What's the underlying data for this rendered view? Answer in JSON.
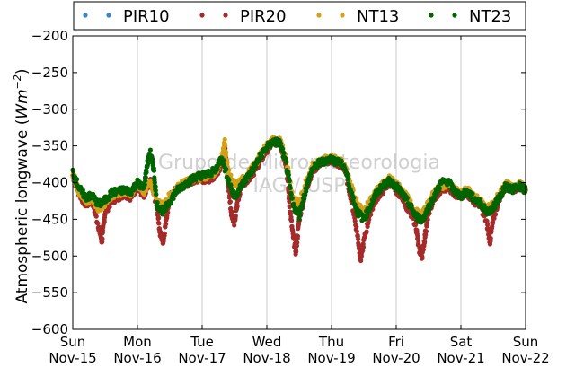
{
  "chart_data": {
    "type": "scatter",
    "title": "",
    "xlabel": "",
    "ylabel": "Atmospheric longwave (W m^-2)",
    "ylabel_text": "Atmospheric longwave (",
    "ylabel_unit_main": "Wm",
    "ylabel_unit_exp": "−2",
    "ylabel_close": ")",
    "ylim": [
      -600,
      -200
    ],
    "yticks": [
      -600,
      -550,
      -500,
      -450,
      -400,
      -350,
      -300,
      -250,
      -200
    ],
    "ytick_labels": [
      "−600",
      "−550",
      "−500",
      "−450",
      "−400",
      "−350",
      "−300",
      "−250",
      "−200"
    ],
    "xlim": [
      0,
      7
    ],
    "x_units": "days since Sun Nov-15",
    "xticks": [
      {
        "day": "Sun",
        "date": "Nov-15"
      },
      {
        "day": "Mon",
        "date": "Nov-16"
      },
      {
        "day": "Tue",
        "date": "Nov-17"
      },
      {
        "day": "Wed",
        "date": "Nov-18"
      },
      {
        "day": "Thu",
        "date": "Nov-19"
      },
      {
        "day": "Fri",
        "date": "Nov-20"
      },
      {
        "day": "Sat",
        "date": "Nov-21"
      },
      {
        "day": "Sun",
        "date": "Nov-22"
      }
    ],
    "grid": "vertical",
    "legend_position": "top",
    "watermark": [
      "Grupo de Micrometeorologia",
      "IAG / USP"
    ],
    "series": [
      {
        "name": "PIR10",
        "color": "#3b86c6",
        "points": []
      },
      {
        "name": "PIR20",
        "color": "#a52a2a",
        "points": [
          [
            0.0,
            -390
          ],
          [
            0.1,
            -415
          ],
          [
            0.2,
            -430
          ],
          [
            0.3,
            -425
          ],
          [
            0.4,
            -460
          ],
          [
            0.45,
            -480
          ],
          [
            0.5,
            -440
          ],
          [
            0.6,
            -425
          ],
          [
            0.7,
            -420
          ],
          [
            0.8,
            -415
          ],
          [
            0.9,
            -420
          ],
          [
            1.0,
            -405
          ],
          [
            1.1,
            -420
          ],
          [
            1.2,
            -400
          ],
          [
            1.3,
            -430
          ],
          [
            1.35,
            -470
          ],
          [
            1.4,
            -480
          ],
          [
            1.45,
            -445
          ],
          [
            1.5,
            -420
          ],
          [
            1.6,
            -410
          ],
          [
            1.7,
            -405
          ],
          [
            1.8,
            -400
          ],
          [
            1.9,
            -395
          ],
          [
            2.0,
            -395
          ],
          [
            2.1,
            -395
          ],
          [
            2.2,
            -390
          ],
          [
            2.3,
            -375
          ],
          [
            2.35,
            -350
          ],
          [
            2.4,
            -400
          ],
          [
            2.45,
            -440
          ],
          [
            2.5,
            -455
          ],
          [
            2.55,
            -425
          ],
          [
            2.6,
            -405
          ],
          [
            2.7,
            -395
          ],
          [
            2.8,
            -385
          ],
          [
            2.9,
            -370
          ],
          [
            3.0,
            -355
          ],
          [
            3.1,
            -345
          ],
          [
            3.2,
            -345
          ],
          [
            3.3,
            -375
          ],
          [
            3.35,
            -430
          ],
          [
            3.4,
            -470
          ],
          [
            3.45,
            -495
          ],
          [
            3.5,
            -450
          ],
          [
            3.6,
            -410
          ],
          [
            3.7,
            -385
          ],
          [
            3.8,
            -375
          ],
          [
            3.9,
            -370
          ],
          [
            4.0,
            -370
          ],
          [
            4.1,
            -375
          ],
          [
            4.2,
            -380
          ],
          [
            4.3,
            -420
          ],
          [
            4.4,
            -470
          ],
          [
            4.45,
            -505
          ],
          [
            4.5,
            -480
          ],
          [
            4.6,
            -440
          ],
          [
            4.7,
            -420
          ],
          [
            4.8,
            -410
          ],
          [
            4.9,
            -400
          ],
          [
            5.0,
            -410
          ],
          [
            5.1,
            -420
          ],
          [
            5.2,
            -440
          ],
          [
            5.3,
            -455
          ],
          [
            5.35,
            -490
          ],
          [
            5.4,
            -500
          ],
          [
            5.45,
            -470
          ],
          [
            5.5,
            -440
          ],
          [
            5.6,
            -420
          ],
          [
            5.7,
            -410
          ],
          [
            5.8,
            -405
          ],
          [
            5.9,
            -415
          ],
          [
            6.0,
            -420
          ],
          [
            6.1,
            -415
          ],
          [
            6.2,
            -425
          ],
          [
            6.3,
            -430
          ],
          [
            6.4,
            -455
          ],
          [
            6.45,
            -480
          ],
          [
            6.5,
            -450
          ],
          [
            6.6,
            -420
          ],
          [
            6.7,
            -405
          ],
          [
            6.8,
            -410
          ],
          [
            6.9,
            -405
          ],
          [
            7.0,
            -410
          ]
        ]
      },
      {
        "name": "NT13",
        "color": "#d4a017",
        "points": [
          [
            0.0,
            -388
          ],
          [
            0.1,
            -412
          ],
          [
            0.2,
            -425
          ],
          [
            0.3,
            -422
          ],
          [
            0.4,
            -435
          ],
          [
            0.5,
            -428
          ],
          [
            0.6,
            -418
          ],
          [
            0.7,
            -415
          ],
          [
            0.8,
            -412
          ],
          [
            0.9,
            -415
          ],
          [
            1.0,
            -402
          ],
          [
            1.1,
            -412
          ],
          [
            1.2,
            -398
          ],
          [
            1.3,
            -425
          ],
          [
            1.4,
            -432
          ],
          [
            1.5,
            -418
          ],
          [
            1.6,
            -408
          ],
          [
            1.7,
            -402
          ],
          [
            1.8,
            -398
          ],
          [
            1.9,
            -393
          ],
          [
            2.0,
            -392
          ],
          [
            2.1,
            -390
          ],
          [
            2.2,
            -386
          ],
          [
            2.3,
            -368
          ],
          [
            2.35,
            -345
          ],
          [
            2.4,
            -385
          ],
          [
            2.5,
            -405
          ],
          [
            2.6,
            -398
          ],
          [
            2.7,
            -390
          ],
          [
            2.8,
            -378
          ],
          [
            2.9,
            -362
          ],
          [
            3.0,
            -350
          ],
          [
            3.1,
            -342
          ],
          [
            3.2,
            -343
          ],
          [
            3.3,
            -368
          ],
          [
            3.4,
            -420
          ],
          [
            3.5,
            -430
          ],
          [
            3.6,
            -400
          ],
          [
            3.7,
            -378
          ],
          [
            3.8,
            -372
          ],
          [
            3.9,
            -368
          ],
          [
            4.0,
            -366
          ],
          [
            4.1,
            -370
          ],
          [
            4.2,
            -375
          ],
          [
            4.3,
            -405
          ],
          [
            4.4,
            -430
          ],
          [
            4.5,
            -440
          ],
          [
            4.6,
            -425
          ],
          [
            4.7,
            -410
          ],
          [
            4.8,
            -402
          ],
          [
            4.9,
            -395
          ],
          [
            5.0,
            -402
          ],
          [
            5.1,
            -412
          ],
          [
            5.2,
            -425
          ],
          [
            5.3,
            -440
          ],
          [
            5.4,
            -445
          ],
          [
            5.5,
            -428
          ],
          [
            5.6,
            -412
          ],
          [
            5.7,
            -405
          ],
          [
            5.8,
            -400
          ],
          [
            5.9,
            -410
          ],
          [
            6.0,
            -415
          ],
          [
            6.1,
            -410
          ],
          [
            6.2,
            -420
          ],
          [
            6.3,
            -425
          ],
          [
            6.4,
            -435
          ],
          [
            6.5,
            -430
          ],
          [
            6.6,
            -415
          ],
          [
            6.7,
            -402
          ],
          [
            6.8,
            -408
          ],
          [
            6.9,
            -402
          ],
          [
            7.0,
            -408
          ]
        ]
      },
      {
        "name": "NT23",
        "color": "#006400",
        "points": [
          [
            0.0,
            -385
          ],
          [
            0.1,
            -408
          ],
          [
            0.2,
            -420
          ],
          [
            0.3,
            -418
          ],
          [
            0.4,
            -430
          ],
          [
            0.5,
            -424
          ],
          [
            0.6,
            -414
          ],
          [
            0.7,
            -412
          ],
          [
            0.8,
            -410
          ],
          [
            0.9,
            -412
          ],
          [
            1.0,
            -400
          ],
          [
            1.1,
            -408
          ],
          [
            1.15,
            -375
          ],
          [
            1.2,
            -360
          ],
          [
            1.25,
            -380
          ],
          [
            1.3,
            -430
          ],
          [
            1.4,
            -440
          ],
          [
            1.5,
            -425
          ],
          [
            1.6,
            -412
          ],
          [
            1.7,
            -404
          ],
          [
            1.8,
            -398
          ],
          [
            1.9,
            -392
          ],
          [
            2.0,
            -390
          ],
          [
            2.1,
            -388
          ],
          [
            2.2,
            -384
          ],
          [
            2.3,
            -365
          ],
          [
            2.4,
            -395
          ],
          [
            2.5,
            -420
          ],
          [
            2.6,
            -405
          ],
          [
            2.7,
            -392
          ],
          [
            2.8,
            -380
          ],
          [
            2.9,
            -364
          ],
          [
            3.0,
            -352
          ],
          [
            3.1,
            -344
          ],
          [
            3.2,
            -346
          ],
          [
            3.3,
            -375
          ],
          [
            3.4,
            -430
          ],
          [
            3.5,
            -445
          ],
          [
            3.6,
            -410
          ],
          [
            3.7,
            -382
          ],
          [
            3.8,
            -374
          ],
          [
            3.9,
            -370
          ],
          [
            4.0,
            -368
          ],
          [
            4.1,
            -372
          ],
          [
            4.2,
            -378
          ],
          [
            4.3,
            -412
          ],
          [
            4.4,
            -440
          ],
          [
            4.5,
            -450
          ],
          [
            4.6,
            -432
          ],
          [
            4.7,
            -414
          ],
          [
            4.8,
            -404
          ],
          [
            4.9,
            -398
          ],
          [
            5.0,
            -405
          ],
          [
            5.1,
            -416
          ],
          [
            5.2,
            -430
          ],
          [
            5.3,
            -445
          ],
          [
            5.4,
            -452
          ],
          [
            5.5,
            -434
          ],
          [
            5.6,
            -416
          ],
          [
            5.7,
            -400
          ],
          [
            5.8,
            -398
          ],
          [
            5.9,
            -412
          ],
          [
            6.0,
            -418
          ],
          [
            6.1,
            -412
          ],
          [
            6.2,
            -422
          ],
          [
            6.3,
            -428
          ],
          [
            6.4,
            -440
          ],
          [
            6.5,
            -435
          ],
          [
            6.6,
            -418
          ],
          [
            6.7,
            -404
          ],
          [
            6.8,
            -410
          ],
          [
            6.9,
            -404
          ],
          [
            7.0,
            -410
          ]
        ]
      }
    ]
  }
}
